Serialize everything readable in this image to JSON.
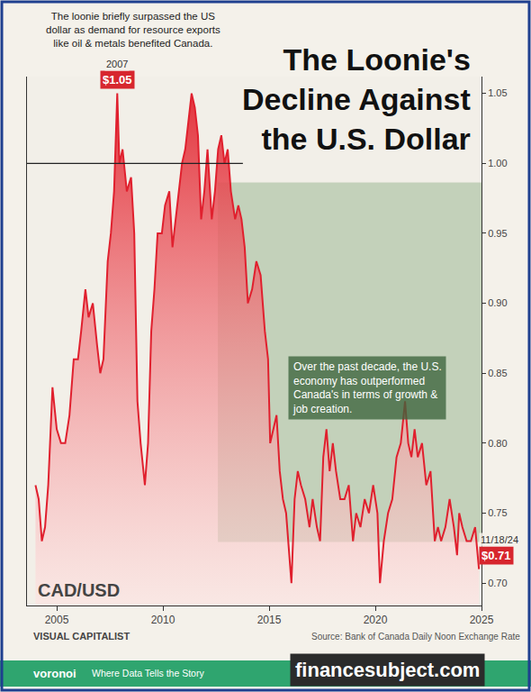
{
  "chart_data": {
    "type": "line",
    "title": "The Loonie's Decline Against the U.S. Dollar",
    "subtitle": "The loonie briefly surpassed the US dollar as demand for resource exports like oil & metals benefited Canada.",
    "note": "Over the past decade, the U.S. economy has outperformed Canada's in terms of growth & job creation.",
    "y_label": "CAD/USD",
    "color": "#e0202e",
    "x": [
      2004.0,
      2004.15,
      2004.3,
      2004.45,
      2004.6,
      2004.8,
      2005.0,
      2005.2,
      2005.4,
      2005.6,
      2005.8,
      2006.0,
      2006.15,
      2006.35,
      2006.5,
      2006.7,
      2006.9,
      2007.05,
      2007.2,
      2007.4,
      2007.55,
      2007.7,
      2007.85,
      2007.95,
      2008.1,
      2008.3,
      2008.5,
      2008.65,
      2008.8,
      2008.95,
      2009.15,
      2009.3,
      2009.45,
      2009.6,
      2009.75,
      2009.95,
      2010.1,
      2010.3,
      2010.45,
      2010.6,
      2010.75,
      2010.9,
      2011.05,
      2011.2,
      2011.35,
      2011.5,
      2011.65,
      2011.8,
      2011.95,
      2012.1,
      2012.3,
      2012.45,
      2012.6,
      2012.75,
      2012.9,
      2013.05,
      2013.2,
      2013.4,
      2013.55,
      2013.7,
      2013.85,
      2014.0,
      2014.2,
      2014.4,
      2014.6,
      2014.8,
      2014.95,
      2015.05,
      2015.2,
      2015.35,
      2015.5,
      2015.65,
      2015.8,
      2015.95,
      2016.05,
      2016.2,
      2016.35,
      2016.5,
      2016.7,
      2016.9,
      2017.05,
      2017.25,
      2017.4,
      2017.55,
      2017.7,
      2017.85,
      2018.0,
      2018.15,
      2018.35,
      2018.55,
      2018.75,
      2018.95,
      2019.1,
      2019.3,
      2019.5,
      2019.7,
      2019.9,
      2020.1,
      2020.22,
      2020.4,
      2020.6,
      2020.8,
      2021.0,
      2021.2,
      2021.4,
      2021.55,
      2021.7,
      2021.85,
      2022.0,
      2022.2,
      2022.4,
      2022.6,
      2022.8,
      2022.95,
      2023.1,
      2023.3,
      2023.5,
      2023.7,
      2023.85,
      2023.95,
      2024.1,
      2024.3,
      2024.5,
      2024.7,
      2024.8,
      2024.88
    ],
    "values": [
      0.77,
      0.76,
      0.73,
      0.74,
      0.77,
      0.84,
      0.81,
      0.8,
      0.8,
      0.82,
      0.86,
      0.86,
      0.88,
      0.91,
      0.89,
      0.9,
      0.87,
      0.85,
      0.86,
      0.93,
      0.95,
      0.98,
      1.05,
      1.0,
      1.01,
      0.98,
      0.99,
      0.95,
      0.83,
      0.8,
      0.77,
      0.8,
      0.88,
      0.91,
      0.95,
      0.95,
      0.97,
      0.98,
      0.94,
      0.96,
      0.98,
      1.0,
      1.01,
      1.03,
      1.05,
      1.04,
      1.02,
      0.96,
      0.98,
      1.01,
      0.96,
      0.98,
      1.01,
      1.02,
      1.0,
      1.01,
      0.98,
      0.96,
      0.97,
      0.96,
      0.94,
      0.9,
      0.91,
      0.93,
      0.92,
      0.88,
      0.86,
      0.8,
      0.81,
      0.82,
      0.78,
      0.76,
      0.75,
      0.72,
      0.7,
      0.76,
      0.78,
      0.77,
      0.76,
      0.74,
      0.76,
      0.74,
      0.73,
      0.79,
      0.81,
      0.78,
      0.8,
      0.78,
      0.76,
      0.76,
      0.77,
      0.73,
      0.75,
      0.74,
      0.76,
      0.75,
      0.77,
      0.75,
      0.7,
      0.73,
      0.75,
      0.76,
      0.79,
      0.8,
      0.83,
      0.8,
      0.79,
      0.81,
      0.79,
      0.8,
      0.77,
      0.78,
      0.73,
      0.74,
      0.73,
      0.74,
      0.76,
      0.74,
      0.72,
      0.75,
      0.74,
      0.73,
      0.73,
      0.74,
      0.72,
      0.71
    ],
    "highlights": [
      {
        "x": 2007.85,
        "y": 1.05,
        "label": "2007",
        "value_label": "$1.05"
      },
      {
        "x": 2024.88,
        "y": 0.71,
        "label": "11/18/24",
        "value_label": "$0.71"
      }
    ],
    "reference_line": 1,
    "xlim": [
      2003.6,
      2025
    ],
    "xticks": [
      2005,
      2010,
      2015,
      2020,
      2025
    ],
    "ylim": [
      0.684,
      1.062
    ],
    "yticks": [
      {
        "value": 0.7,
        "label": "0.70"
      },
      0.75,
      {
        "value": 0.8,
        "label": "0.80"
      },
      0.85,
      {
        "value": 0.9,
        "label": "0.90"
      },
      0.95,
      {
        "value": 1,
        "label": "1.00"
      },
      1.05
    ],
    "grid": false
  },
  "footer": {
    "brand": "VISUAL CAPITALIST",
    "source": "Source: Bank of Canada Daily Noon Exchange Rate",
    "sponsor": "voronoi",
    "tagline": "Where Data Tells the Story",
    "watermark": "financesubject.com"
  }
}
